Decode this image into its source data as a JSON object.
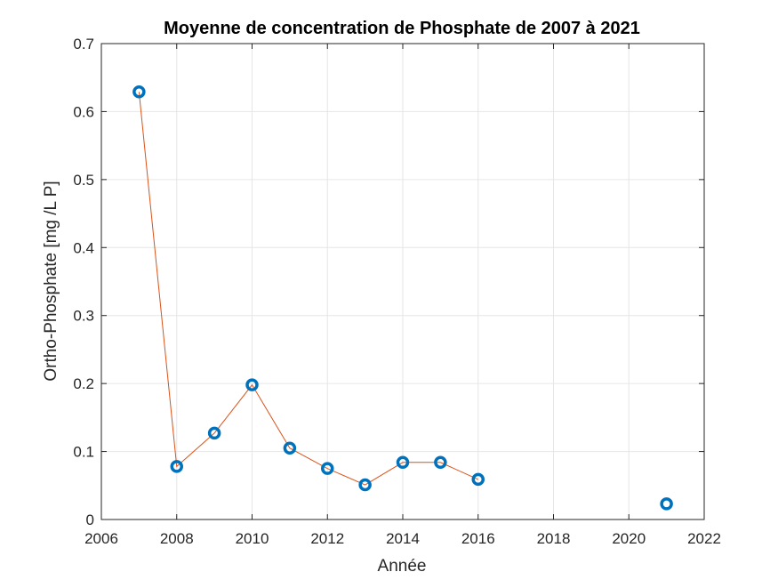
{
  "chart_data": {
    "type": "line",
    "title": "Moyenne de concentration de Phosphate de 2007 à 2021",
    "xlabel": "Année",
    "ylabel": "Ortho-Phosphate [mg /L P]",
    "xlim": [
      2006,
      2022
    ],
    "ylim": [
      0,
      0.7
    ],
    "xticks": [
      2006,
      2008,
      2010,
      2012,
      2014,
      2016,
      2018,
      2020,
      2022
    ],
    "yticks": [
      0,
      0.1,
      0.2,
      0.3,
      0.4,
      0.5,
      0.6,
      0.7
    ],
    "xtick_labels": [
      "2006",
      "2008",
      "2010",
      "2012",
      "2014",
      "2016",
      "2018",
      "2020",
      "2022"
    ],
    "ytick_labels": [
      "0",
      "0.1",
      "0.2",
      "0.3",
      "0.4",
      "0.5",
      "0.6",
      "0.7"
    ],
    "grid": true,
    "colors": {
      "line": "#d95319",
      "marker": "#0072bd",
      "axis": "#262626",
      "grid": "#e6e6e6"
    },
    "series": [
      {
        "x": [
          2007,
          2008,
          2009,
          2010,
          2011,
          2012,
          2013,
          2014,
          2015,
          2016,
          2021
        ],
        "values": [
          0.629,
          0.078,
          0.127,
          0.198,
          0.105,
          0.075,
          0.051,
          0.084,
          0.084,
          0.059,
          0.023
        ],
        "line_x": [
          2007,
          2008,
          2009,
          2010,
          2011,
          2012,
          2013,
          2014,
          2015,
          2016
        ]
      }
    ]
  }
}
